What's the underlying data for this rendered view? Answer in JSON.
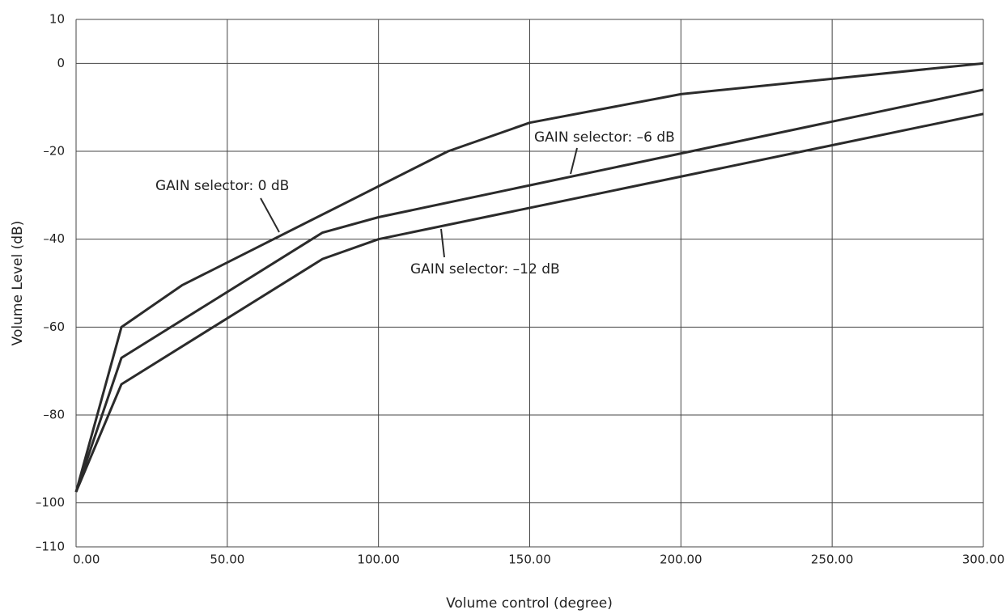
{
  "chart_data": {
    "type": "line",
    "x_label": "Volume control (degree)",
    "y_label": "Volume Level (dB)",
    "xlim": [
      0,
      300
    ],
    "ylim": [
      -110,
      10
    ],
    "xticks": [
      {
        "value": 0,
        "label": "0.00"
      },
      {
        "value": 50,
        "label": "50.00"
      },
      {
        "value": 100,
        "label": "100.00"
      },
      {
        "value": 150,
        "label": "150.00"
      },
      {
        "value": 200,
        "label": "200.00"
      },
      {
        "value": 250,
        "label": "250.00"
      },
      {
        "value": 300,
        "label": "300.00"
      }
    ],
    "yticks": [
      10,
      0,
      {
        "value": -20,
        "label": "–20"
      },
      {
        "value": -40,
        "label": "–40"
      },
      {
        "value": -60,
        "label": "–60"
      },
      {
        "value": -80,
        "label": "–80"
      },
      {
        "value": -100,
        "label": "–100"
      },
      {
        "value": -110,
        "label": "–110"
      }
    ],
    "grid": true,
    "series": [
      {
        "name": "GAIN selector: 0 dB",
        "color": "#2b2b2b",
        "x": [
          0,
          15,
          35,
          123,
          150,
          200,
          300
        ],
        "values": [
          -97.5,
          -60,
          -50.5,
          -20,
          -13.5,
          -7,
          0
        ]
      },
      {
        "name": "GAIN selector: –6 dB",
        "color": "#2b2b2b",
        "x": [
          0,
          15,
          81.5,
          100,
          300
        ],
        "values": [
          -97.5,
          -67,
          -38.5,
          -35,
          -6
        ]
      },
      {
        "name": "GAIN selector: –12 dB",
        "color": "#2b2b2b",
        "x": [
          0,
          15,
          81.5,
          100,
          300
        ],
        "values": [
          -97.5,
          -73,
          -44.5,
          -40,
          -11.5
        ]
      }
    ]
  }
}
